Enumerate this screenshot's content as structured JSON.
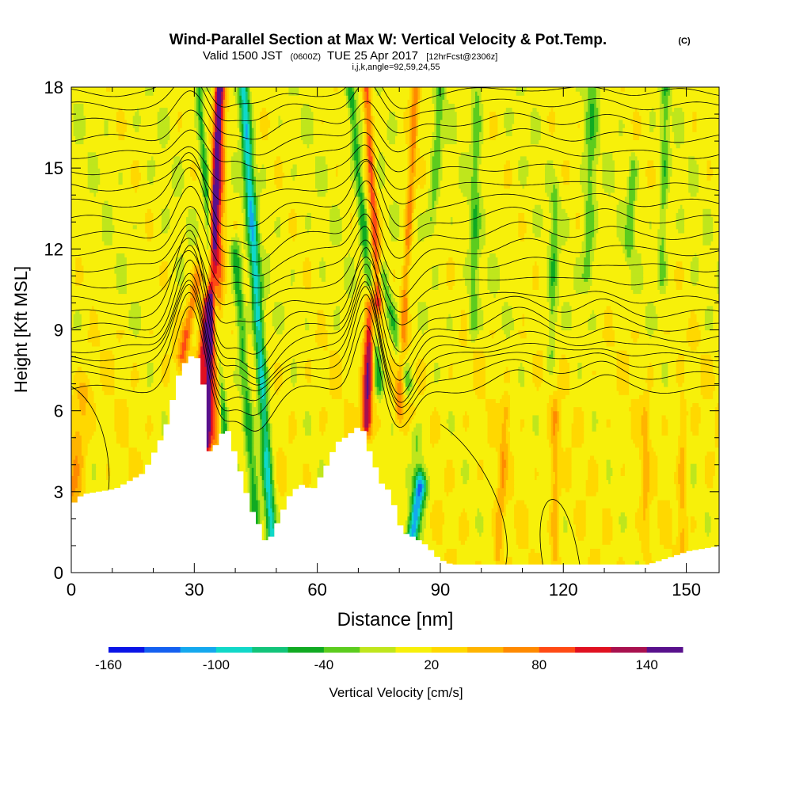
{
  "chart_data": {
    "type": "heatmap",
    "title": "Wind-Parallel Section at Max W: Vertical Velocity & Pot.Temp.",
    "title_mark": "(C)",
    "subtitle_main": "Valid 1500 JST",
    "subtitle_utc": "(0600Z)",
    "subtitle_date": "TUE 25 Apr 2017",
    "subtitle_fcst": "[12hrFcst@2306z]",
    "subtitle_indices": "i,j,k,angle=92,59,24,55",
    "xlabel": "Distance [nm]",
    "ylabel": "Height [Kft MSL]",
    "xlim": [
      0,
      158
    ],
    "ylim": [
      0,
      18
    ],
    "x_ticks": [
      0,
      30,
      60,
      90,
      120,
      150
    ],
    "x_tick_labels": [
      "0",
      "30",
      "60",
      "90",
      "120",
      "150"
    ],
    "y_ticks": [
      0,
      3,
      6,
      9,
      12,
      15,
      18
    ],
    "y_tick_labels": [
      "0",
      "3",
      "6",
      "9",
      "12",
      "15",
      "18"
    ],
    "colorbar": {
      "label": "Vertical Velocity [cm/s]",
      "min": -160,
      "max": 160,
      "step": 20,
      "tick_labels": [
        "-160",
        "-100",
        "-40",
        "20",
        "80",
        "140"
      ],
      "tick_values": [
        -160,
        -100,
        -40,
        20,
        80,
        140
      ],
      "colors": [
        "#0a14e6",
        "#1460f0",
        "#14a8ee",
        "#10d8c8",
        "#12c47a",
        "#10aa22",
        "#5ccc1e",
        "#bfe61c",
        "#f7f00a",
        "#ffd800",
        "#ffb400",
        "#ff8a00",
        "#ff4a14",
        "#e01020",
        "#a8104e",
        "#58108c"
      ]
    },
    "terrain_profile": {
      "x": [
        0,
        2,
        10,
        17,
        22,
        26,
        29,
        31,
        33,
        35,
        37,
        39,
        41,
        43,
        45,
        47,
        50,
        53,
        56,
        58,
        61,
        64,
        67,
        70,
        72,
        75,
        77,
        80,
        83,
        86,
        89,
        92,
        100,
        110,
        120,
        130,
        140,
        150,
        158
      ],
      "y": [
        2.6,
        2.9,
        3.1,
        3.7,
        5.2,
        7.6,
        8.1,
        7.8,
        4.5,
        4.8,
        5.5,
        4.5,
        3.5,
        2.4,
        1.8,
        1.0,
        2.0,
        3.0,
        3.3,
        3.0,
        3.8,
        4.8,
        5.1,
        5.5,
        4.5,
        3.3,
        3.0,
        1.5,
        1.3,
        1.0,
        0.5,
        0.3,
        0.3,
        0.3,
        0.3,
        0.3,
        0.3,
        0.8,
        1.0
      ]
    },
    "velocity_features": [
      {
        "x_bottom": 27,
        "x_top": 31,
        "y_bottom": 8.0,
        "y_top": 11.0,
        "half_width": 1.3,
        "w": 70
      },
      {
        "x_bottom": 33,
        "x_top": 36,
        "y_bottom": 4.8,
        "y_top": 18.0,
        "half_width": 1.0,
        "w": 140
      },
      {
        "x_bottom": 30,
        "x_top": 33,
        "y_bottom": 4.0,
        "y_top": 10.0,
        "half_width": 1.2,
        "w": 100
      },
      {
        "x_bottom": 38,
        "x_top": 31,
        "y_bottom": 4.0,
        "y_top": 18.0,
        "half_width": 0.9,
        "w": -60
      },
      {
        "x_bottom": 49,
        "x_top": 42,
        "y_bottom": 1.0,
        "y_top": 18.0,
        "half_width": 1.3,
        "w": -100
      },
      {
        "x_bottom": 45,
        "x_top": 40,
        "y_bottom": 2.0,
        "y_top": 12.0,
        "half_width": 1.2,
        "w": -60
      },
      {
        "x_bottom": 35,
        "x_top": 37,
        "y_bottom": 5.0,
        "y_top": 18.0,
        "half_width": 1.3,
        "w": 60
      },
      {
        "x_bottom": 72,
        "x_top": 73,
        "y_bottom": 5.5,
        "y_top": 10.0,
        "half_width": 1.3,
        "w": 130
      },
      {
        "x_bottom": 75,
        "x_top": 68,
        "y_bottom": 7.0,
        "y_top": 18.0,
        "half_width": 1.1,
        "w": -60
      },
      {
        "x_bottom": 82,
        "x_top": 76,
        "y_bottom": 7.0,
        "y_top": 11.0,
        "half_width": 1.4,
        "w": -50
      },
      {
        "x_bottom": 75,
        "x_top": 72,
        "y_bottom": 10.0,
        "y_top": 18.0,
        "half_width": 1.0,
        "w": 80
      },
      {
        "x_bottom": 83,
        "x_top": 85,
        "y_bottom": 1.2,
        "y_top": 3.3,
        "half_width": 1.5,
        "w": -120
      },
      {
        "x_bottom": 86,
        "x_top": 84,
        "y_bottom": 3.0,
        "y_top": 5.0,
        "half_width": 1.6,
        "w": -40
      },
      {
        "x_bottom": 0,
        "x_top": 3,
        "y_bottom": 2.6,
        "y_top": 6.8,
        "half_width": 2.2,
        "w": 40
      },
      {
        "x_bottom": 80,
        "x_top": 84,
        "y_bottom": 6.0,
        "y_top": 18.0,
        "half_width": 1.0,
        "w": 60
      },
      {
        "x_bottom": 104,
        "x_top": 106,
        "y_bottom": 0.5,
        "y_top": 6.0,
        "half_width": 1.0,
        "w": 40
      },
      {
        "x_bottom": 118,
        "x_top": 118,
        "y_bottom": 0.5,
        "y_top": 6.0,
        "half_width": 1.0,
        "w": 40
      },
      {
        "x_bottom": 140,
        "x_top": 140,
        "y_bottom": 1.0,
        "y_top": 6.0,
        "half_width": 1.0,
        "w": 30
      },
      {
        "x_bottom": 149,
        "x_top": 149,
        "y_bottom": 1.0,
        "y_top": 6.0,
        "half_width": 1.0,
        "w": 35
      },
      {
        "x_bottom": 98,
        "x_top": 99,
        "y_bottom": 9.0,
        "y_top": 18.0,
        "half_width": 1.2,
        "w": -40
      },
      {
        "x_bottom": 117,
        "x_top": 118,
        "y_bottom": 8.0,
        "y_top": 14.0,
        "half_width": 1.0,
        "w": -40
      },
      {
        "x_bottom": 126,
        "x_top": 127,
        "y_bottom": 11.0,
        "y_top": 18.0,
        "half_width": 1.5,
        "w": -40
      },
      {
        "x_bottom": 144,
        "x_top": 145,
        "y_bottom": 11.0,
        "y_top": 18.0,
        "half_width": 1.0,
        "w": -40
      },
      {
        "x_bottom": 136,
        "x_top": 137,
        "y_bottom": 12.0,
        "y_top": 15.0,
        "half_width": 1.0,
        "w": -40
      },
      {
        "x_bottom": 88,
        "x_top": 90,
        "y_bottom": 13.0,
        "y_top": 18.0,
        "half_width": 1.2,
        "w": -40
      }
    ],
    "isentrope_base_heights": [
      6.8,
      7.3,
      7.7,
      8.0,
      8.3,
      8.7,
      9.1,
      9.6,
      10.1,
      10.7,
      11.3,
      11.9,
      12.5,
      13.1,
      13.7,
      14.3,
      14.9,
      15.5,
      16.1,
      16.7,
      17.3,
      17.8
    ]
  }
}
